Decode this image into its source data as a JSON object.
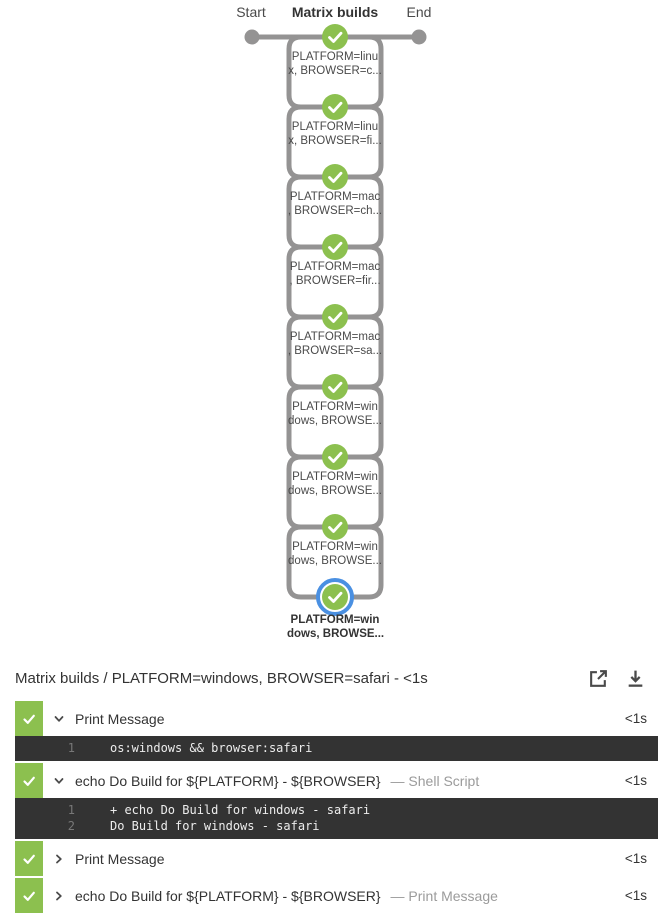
{
  "pipeline": {
    "start_label": "Start",
    "stage_label": "Matrix builds",
    "end_label": "End",
    "status": "success",
    "nodes": [
      {
        "line1": "PLATFORM=linu",
        "line2": "x, BROWSER=c...",
        "selected": false
      },
      {
        "line1": "PLATFORM=linu",
        "line2": "x, BROWSER=fi...",
        "selected": false
      },
      {
        "line1": "PLATFORM=mac",
        "line2": ", BROWSER=ch...",
        "selected": false
      },
      {
        "line1": "PLATFORM=mac",
        "line2": ", BROWSER=fir...",
        "selected": false
      },
      {
        "line1": "PLATFORM=mac",
        "line2": ", BROWSER=sa...",
        "selected": false
      },
      {
        "line1": "PLATFORM=win",
        "line2": "dows, BROWSE...",
        "selected": false
      },
      {
        "line1": "PLATFORM=win",
        "line2": "dows, BROWSE...",
        "selected": false
      },
      {
        "line1": "PLATFORM=win",
        "line2": "dows, BROWSE...",
        "selected": false
      },
      {
        "line1": "PLATFORM=win",
        "line2": "dows, BROWSE...",
        "selected": true
      }
    ]
  },
  "detail": {
    "title": "Matrix builds / PLATFORM=windows, BROWSER=safari - <1s",
    "header_icons": [
      "open-log-in-new-window",
      "download-logs"
    ],
    "steps": [
      {
        "title": "Print Message",
        "subtitle": "",
        "duration": "<1s",
        "expanded": true,
        "log": [
          {
            "num": "1",
            "text": "os:windows && browser:safari"
          }
        ]
      },
      {
        "title": "echo Do Build for ${PLATFORM} - ${BROWSER}",
        "subtitle": "— Shell Script",
        "duration": "<1s",
        "expanded": true,
        "log": [
          {
            "num": "1",
            "text": "+ echo Do Build for windows - safari"
          },
          {
            "num": "2",
            "text": "Do Build for windows - safari"
          }
        ]
      },
      {
        "title": "Print Message",
        "subtitle": "",
        "duration": "<1s",
        "expanded": false,
        "log": []
      },
      {
        "title": "echo Do Build for ${PLATFORM} - ${BROWSER}",
        "subtitle": "— Print Message",
        "duration": "<1s",
        "expanded": false,
        "log": []
      }
    ]
  },
  "colors": {
    "success_green": "#8CC04F",
    "connector_gray": "#949393",
    "selected_ring_blue": "#4A90E2",
    "log_background": "#333333"
  }
}
